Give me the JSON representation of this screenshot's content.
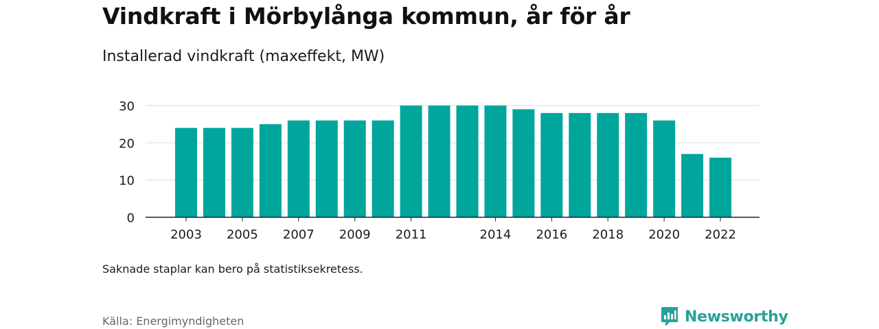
{
  "header": {
    "title": "Vindkraft i Mörbylånga kommun, år för år",
    "subtitle": "Installerad vindkraft (maxeffekt, MW)"
  },
  "footer": {
    "note": "Saknade staplar kan bero på statistiksekretess.",
    "source": "Källa: Energimyndigheten",
    "brand": "Newsworthy"
  },
  "colors": {
    "bar": "#00a59c",
    "grid": "#dddddd",
    "axis": "#222222",
    "brand": "#28a197"
  },
  "chart_data": {
    "type": "bar",
    "title": "Vindkraft i Mörbylånga kommun, år för år",
    "subtitle": "Installerad vindkraft (maxeffekt, MW)",
    "categories": [
      "2003",
      "2004",
      "2005",
      "2006",
      "2007",
      "2008",
      "2009",
      "2010",
      "2011",
      "2012",
      "2013",
      "2014",
      "2015",
      "2016",
      "2017",
      "2018",
      "2019",
      "2020",
      "2021",
      "2022"
    ],
    "values": [
      24,
      24,
      24,
      25,
      26,
      26,
      26,
      26,
      30,
      30,
      30,
      30,
      29,
      28,
      28,
      28,
      28,
      26,
      17,
      16
    ],
    "x_tick_labels": [
      "2003",
      "2005",
      "2007",
      "2009",
      "2011",
      "2014",
      "2016",
      "2018",
      "2020",
      "2022"
    ],
    "y_ticks": [
      0,
      10,
      20,
      30
    ],
    "ylim": [
      0,
      30
    ],
    "grid": true,
    "legend": "none"
  }
}
